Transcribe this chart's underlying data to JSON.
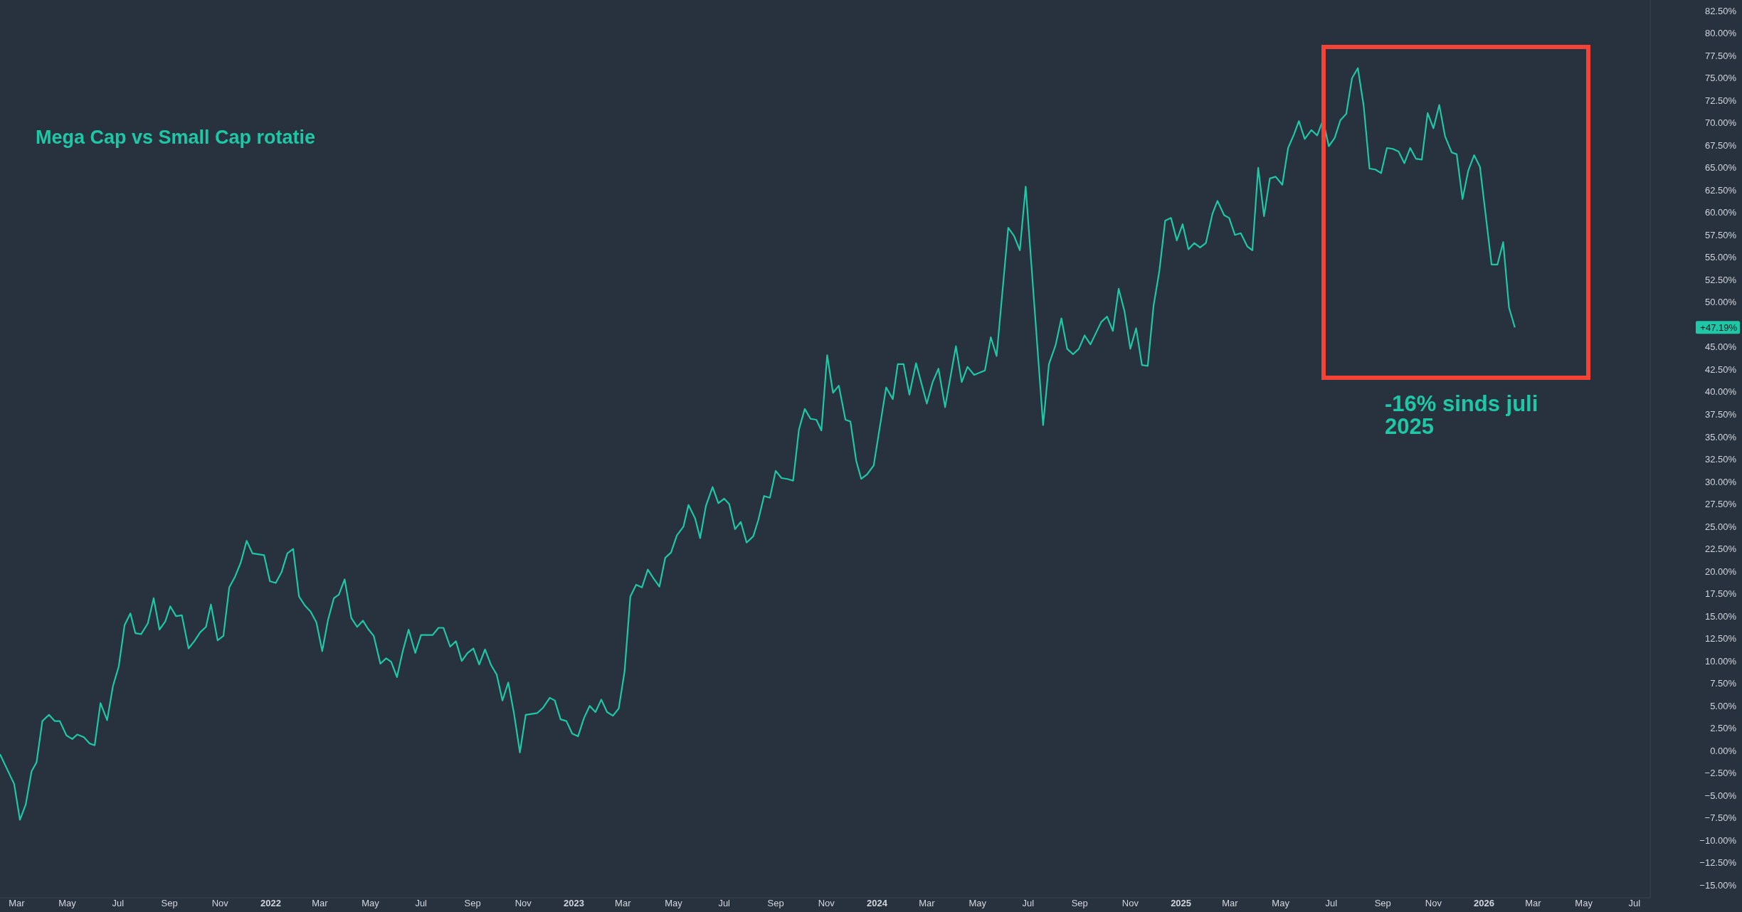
{
  "chart_data": {
    "type": "line",
    "title": "Mega Cap vs Small Cap rotatie",
    "xlim": [
      "2021-02-09",
      "2026-07-20"
    ],
    "ylim": [
      -16.4,
      83.7
    ],
    "xticks": [
      {
        "value": "2021-03-01",
        "label": "Mar"
      },
      {
        "value": "2021-05-01",
        "label": "May"
      },
      {
        "value": "2021-07-01",
        "label": "Jul"
      },
      {
        "value": "2021-09-01",
        "label": "Sep"
      },
      {
        "value": "2021-11-01",
        "label": "Nov"
      },
      {
        "value": "2022-01-01",
        "label": "2022"
      },
      {
        "value": "2022-03-01",
        "label": "Mar"
      },
      {
        "value": "2022-05-01",
        "label": "May"
      },
      {
        "value": "2022-07-01",
        "label": "Jul"
      },
      {
        "value": "2022-09-01",
        "label": "Sep"
      },
      {
        "value": "2022-11-01",
        "label": "Nov"
      },
      {
        "value": "2023-01-01",
        "label": "2023"
      },
      {
        "value": "2023-03-01",
        "label": "Mar"
      },
      {
        "value": "2023-05-01",
        "label": "May"
      },
      {
        "value": "2023-07-01",
        "label": "Jul"
      },
      {
        "value": "2023-09-01",
        "label": "Sep"
      },
      {
        "value": "2023-11-01",
        "label": "Nov"
      },
      {
        "value": "2024-01-01",
        "label": "2024"
      },
      {
        "value": "2024-03-01",
        "label": "Mar"
      },
      {
        "value": "2024-05-01",
        "label": "May"
      },
      {
        "value": "2024-07-01",
        "label": "Jul"
      },
      {
        "value": "2024-09-01",
        "label": "Sep"
      },
      {
        "value": "2024-11-01",
        "label": "Nov"
      },
      {
        "value": "2025-01-01",
        "label": "2025"
      },
      {
        "value": "2025-03-01",
        "label": "Mar"
      },
      {
        "value": "2025-05-01",
        "label": "May"
      },
      {
        "value": "2025-07-01",
        "label": "Jul"
      },
      {
        "value": "2025-09-01",
        "label": "Sep"
      },
      {
        "value": "2025-11-01",
        "label": "Nov"
      },
      {
        "value": "2026-01-01",
        "label": "2026"
      },
      {
        "value": "2026-03-01",
        "label": "Mar"
      },
      {
        "value": "2026-05-01",
        "label": "May"
      },
      {
        "value": "2026-07-01",
        "label": "Jul"
      }
    ],
    "yticks": [
      {
        "value": -15,
        "label": "−15.00%"
      },
      {
        "value": -12.5,
        "label": "−12.50%"
      },
      {
        "value": -10,
        "label": "−10.00%"
      },
      {
        "value": -7.5,
        "label": "−7.50%"
      },
      {
        "value": -5,
        "label": "−5.00%"
      },
      {
        "value": -2.5,
        "label": "−2.50%"
      },
      {
        "value": 0,
        "label": "0.00%"
      },
      {
        "value": 2.5,
        "label": "2.50%"
      },
      {
        "value": 5,
        "label": "5.00%"
      },
      {
        "value": 7.5,
        "label": "7.50%"
      },
      {
        "value": 10,
        "label": "10.00%"
      },
      {
        "value": 12.5,
        "label": "12.50%"
      },
      {
        "value": 15,
        "label": "15.00%"
      },
      {
        "value": 17.5,
        "label": "17.50%"
      },
      {
        "value": 20,
        "label": "20.00%"
      },
      {
        "value": 22.5,
        "label": "22.50%"
      },
      {
        "value": 25,
        "label": "25.00%"
      },
      {
        "value": 27.5,
        "label": "27.50%"
      },
      {
        "value": 30,
        "label": "30.00%"
      },
      {
        "value": 32.5,
        "label": "32.50%"
      },
      {
        "value": 35,
        "label": "35.00%"
      },
      {
        "value": 37.5,
        "label": "37.50%"
      },
      {
        "value": 40,
        "label": "40.00%"
      },
      {
        "value": 42.5,
        "label": "42.50%"
      },
      {
        "value": 45,
        "label": "45.00%"
      },
      {
        "value": 50,
        "label": "50.00%"
      },
      {
        "value": 52.5,
        "label": "52.50%"
      },
      {
        "value": 55,
        "label": "55.00%"
      },
      {
        "value": 57.5,
        "label": "57.50%"
      },
      {
        "value": 60,
        "label": "60.00%"
      },
      {
        "value": 62.5,
        "label": "62.50%"
      },
      {
        "value": 65,
        "label": "65.00%"
      },
      {
        "value": 67.5,
        "label": "67.50%"
      },
      {
        "value": 70,
        "label": "70.00%"
      },
      {
        "value": 72.5,
        "label": "72.50%"
      },
      {
        "value": 75,
        "label": "75.00%"
      },
      {
        "value": 77.5,
        "label": "77.50%"
      },
      {
        "value": 80,
        "label": "80.00%"
      },
      {
        "value": 82.5,
        "label": "82.50%"
      }
    ],
    "annotations": [
      "-16% sinds juli 2025",
      "+47.19%"
    ],
    "series": [
      {
        "color": "#1ec7a6",
        "x": [
          "2021-02-09",
          "2021-02-26",
          "2021-03-05",
          "2021-03-12",
          "2021-03-19",
          "2021-03-25",
          "2021-04-01",
          "2021-04-09",
          "2021-04-16",
          "2021-04-22",
          "2021-04-30",
          "2021-05-07",
          "2021-05-13",
          "2021-05-21",
          "2021-05-28",
          "2021-06-03",
          "2021-06-10",
          "2021-06-18",
          "2021-06-25",
          "2021-07-02",
          "2021-07-09",
          "2021-07-16",
          "2021-07-22",
          "2021-07-29",
          "2021-08-06",
          "2021-08-13",
          "2021-08-20",
          "2021-08-27",
          "2021-09-02",
          "2021-09-09",
          "2021-09-16",
          "2021-09-24",
          "2021-10-01",
          "2021-10-08",
          "2021-10-15",
          "2021-10-21",
          "2021-10-29",
          "2021-11-05",
          "2021-11-12",
          "2021-11-19",
          "2021-11-26",
          "2021-12-03",
          "2021-12-10",
          "2021-12-24",
          "2021-12-31",
          "2022-01-07",
          "2022-01-14",
          "2022-01-21",
          "2022-01-28",
          "2022-02-04",
          "2022-02-11",
          "2022-02-18",
          "2022-02-25",
          "2022-03-04",
          "2022-03-11",
          "2022-03-18",
          "2022-03-24",
          "2022-03-31",
          "2022-04-08",
          "2022-04-15",
          "2022-04-22",
          "2022-04-28",
          "2022-05-05",
          "2022-05-13",
          "2022-05-20",
          "2022-05-26",
          "2022-06-02",
          "2022-06-09",
          "2022-06-16",
          "2022-06-24",
          "2022-07-01",
          "2022-07-15",
          "2022-07-22",
          "2022-07-28",
          "2022-08-05",
          "2022-08-12",
          "2022-08-19",
          "2022-08-26",
          "2022-09-02",
          "2022-09-09",
          "2022-09-16",
          "2022-09-23",
          "2022-09-30",
          "2022-10-07",
          "2022-10-14",
          "2022-10-21",
          "2022-10-28",
          "2022-11-04",
          "2022-11-18",
          "2022-11-25",
          "2022-12-03",
          "2022-12-09",
          "2022-12-16",
          "2022-12-23",
          "2022-12-30",
          "2023-01-06",
          "2023-01-13",
          "2023-01-20",
          "2023-01-27",
          "2023-02-03",
          "2023-02-10",
          "2023-02-17",
          "2023-02-24",
          "2023-03-03",
          "2023-03-10",
          "2023-03-17",
          "2023-03-24",
          "2023-03-31",
          "2023-04-07",
          "2023-04-14",
          "2023-04-21",
          "2023-04-28",
          "2023-05-05",
          "2023-05-13",
          "2023-05-19",
          "2023-05-27",
          "2023-06-02",
          "2023-06-09",
          "2023-06-17",
          "2023-06-24",
          "2023-07-01",
          "2023-07-07",
          "2023-07-14",
          "2023-07-21",
          "2023-07-28",
          "2023-08-05",
          "2023-08-11",
          "2023-08-18",
          "2023-08-25",
          "2023-09-01",
          "2023-09-08",
          "2023-09-15",
          "2023-09-22",
          "2023-09-29",
          "2023-10-06",
          "2023-10-13",
          "2023-10-20",
          "2023-10-26",
          "2023-11-02",
          "2023-11-09",
          "2023-11-16",
          "2023-11-24",
          "2023-11-30",
          "2023-12-07",
          "2023-12-13",
          "2023-12-20",
          "2023-12-28",
          "2024-01-12",
          "2024-01-20",
          "2024-01-26",
          "2024-02-02",
          "2024-02-09",
          "2024-02-17",
          "2024-03-01",
          "2024-03-08",
          "2024-03-15",
          "2024-03-23",
          "2024-04-05",
          "2024-04-12",
          "2024-04-19",
          "2024-04-27",
          "2024-05-10",
          "2024-05-17",
          "2024-05-24",
          "2024-06-07",
          "2024-06-14",
          "2024-06-21",
          "2024-06-28",
          "2024-07-19",
          "2024-07-26",
          "2024-08-03",
          "2024-08-10",
          "2024-08-17",
          "2024-08-24",
          "2024-08-31",
          "2024-09-07",
          "2024-09-14",
          "2024-09-27",
          "2024-10-04",
          "2024-10-11",
          "2024-10-18",
          "2024-10-25",
          "2024-11-01",
          "2024-11-08",
          "2024-11-15",
          "2024-11-22",
          "2024-11-29",
          "2024-12-06",
          "2024-12-13",
          "2024-12-20",
          "2024-12-27",
          "2025-01-03",
          "2025-01-10",
          "2025-01-17",
          "2025-01-24",
          "2025-01-31",
          "2025-02-08",
          "2025-02-14",
          "2025-02-22",
          "2025-02-28",
          "2025-03-07",
          "2025-03-14",
          "2025-03-22",
          "2025-03-28",
          "2025-04-04",
          "2025-04-11",
          "2025-04-18",
          "2025-04-25",
          "2025-05-03",
          "2025-05-10",
          "2025-05-17",
          "2025-05-23",
          "2025-05-30",
          "2025-06-07",
          "2025-06-14",
          "2025-06-21",
          "2025-06-28",
          "2025-07-05",
          "2025-07-12",
          "2025-07-19",
          "2025-07-26",
          "2025-08-02",
          "2025-08-09",
          "2025-08-16",
          "2025-08-23",
          "2025-08-30",
          "2025-09-06",
          "2025-09-13",
          "2025-09-20",
          "2025-09-27",
          "2025-10-04",
          "2025-10-11",
          "2025-10-18",
          "2025-10-25",
          "2025-11-01",
          "2025-11-08",
          "2025-11-15",
          "2025-11-23",
          "2025-11-29",
          "2025-12-06",
          "2025-12-13",
          "2025-12-20",
          "2025-12-27",
          "2026-01-10",
          "2026-01-17",
          "2026-01-24",
          "2026-01-31",
          "2026-02-07"
        ],
        "values": [
          -0.4,
          -3.7,
          -7.7,
          -6.0,
          -2.3,
          -1.3,
          3.3,
          4.0,
          3.3,
          3.3,
          1.7,
          1.3,
          1.8,
          1.5,
          0.8,
          0.6,
          5.3,
          3.4,
          7.2,
          9.4,
          14.0,
          15.3,
          13.1,
          13.0,
          14.2,
          17.0,
          13.5,
          14.4,
          16.1,
          15.0,
          15.1,
          11.4,
          12.2,
          13.2,
          13.8,
          16.3,
          12.3,
          12.8,
          18.2,
          19.4,
          21.0,
          23.4,
          22.0,
          21.8,
          18.9,
          18.7,
          19.9,
          22.0,
          22.5,
          17.2,
          16.2,
          15.5,
          14.3,
          11.1,
          14.6,
          17.0,
          17.4,
          19.1,
          14.8,
          13.8,
          14.5,
          13.6,
          12.8,
          9.7,
          10.3,
          9.9,
          8.2,
          11.1,
          13.5,
          10.9,
          12.9,
          12.9,
          13.7,
          13.7,
          11.6,
          12.2,
          10.0,
          10.9,
          11.4,
          9.6,
          11.3,
          9.6,
          8.5,
          5.6,
          7.6,
          4.1,
          -0.2,
          4.0,
          4.2,
          4.8,
          5.9,
          5.6,
          3.5,
          3.3,
          1.9,
          1.6,
          3.6,
          5.0,
          4.3,
          5.7,
          4.3,
          3.9,
          4.7,
          8.8,
          17.2,
          18.5,
          18.2,
          20.2,
          19.2,
          18.3,
          21.5,
          22.1,
          24.0,
          25.0,
          27.4,
          25.9,
          23.7,
          27.3,
          29.4,
          27.6,
          28.1,
          27.5,
          24.7,
          25.5,
          23.2,
          23.9,
          25.7,
          28.4,
          28.2,
          31.2,
          30.4,
          30.3,
          30.1,
          35.8,
          38.1,
          37.0,
          36.9,
          35.7,
          44.1,
          39.9,
          40.7,
          36.9,
          36.7,
          32.3,
          30.3,
          30.8,
          31.8,
          40.5,
          39.2,
          43.1,
          43.1,
          39.7,
          43.2,
          38.7,
          41.1,
          42.6,
          38.3,
          45.1,
          41.1,
          42.8,
          41.9,
          42.4,
          46.1,
          44.0,
          58.3,
          57.4,
          55.8,
          62.9,
          36.3,
          43.1,
          45.2,
          48.2,
          44.8,
          44.2,
          44.8,
          46.3,
          45.3,
          47.8,
          48.4,
          46.8,
          51.5,
          49.0,
          44.8,
          47.1,
          43.0,
          42.9,
          49.6,
          53.5,
          59.1,
          59.4,
          56.9,
          58.7,
          55.9,
          56.6,
          56.1,
          56.6,
          59.9,
          61.3,
          59.7,
          59.4,
          57.5,
          57.7,
          56.2,
          55.8,
          65.0,
          59.6,
          63.8,
          64.0,
          63.1,
          67.2,
          68.7,
          70.2,
          68.2,
          69.2,
          68.6,
          70.3,
          67.4,
          68.3,
          70.3,
          71.0,
          75.0,
          76.1,
          71.9,
          64.9,
          64.8,
          64.4,
          67.2,
          67.1,
          66.8,
          65.5,
          67.2,
          66.0,
          65.9,
          71.1,
          69.4,
          72.0,
          68.5,
          66.7,
          66.5,
          61.5,
          64.7,
          66.4,
          65.1,
          54.2,
          54.2,
          56.7,
          49.4,
          47.19
        ]
      }
    ]
  }
}
